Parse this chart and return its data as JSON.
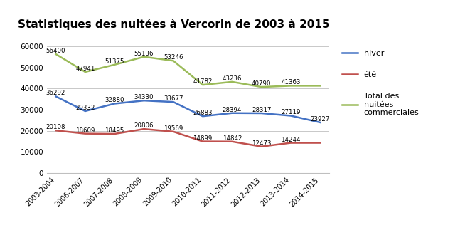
{
  "categories": [
    "2003-2004",
    "2006-2007",
    "2007-2008",
    "2008-2009",
    "2009-2010",
    "2010-2011",
    "2011-2012",
    "2012-2013",
    "2013-2014",
    "2014-2015"
  ],
  "hiver": [
    36292,
    29332,
    32880,
    34330,
    33677,
    26883,
    28394,
    28317,
    27119,
    23927
  ],
  "ete": [
    20108,
    18609,
    18495,
    20806,
    19569,
    14899,
    14842,
    12473,
    14244,
    14244
  ],
  "total": [
    56400,
    47941,
    51375,
    55136,
    53246,
    41782,
    43236,
    40790,
    41363,
    41363
  ],
  "hiver_labels": [
    36292,
    29332,
    32880,
    34330,
    33677,
    26883,
    28394,
    28317,
    27119,
    23927
  ],
  "ete_labels": [
    20108,
    18609,
    18495,
    20806,
    19569,
    14899,
    14842,
    12473,
    14244,
    null
  ],
  "total_labels": [
    56400,
    47941,
    51375,
    55136,
    53246,
    41782,
    43236,
    40790,
    41363,
    null
  ],
  "color_hiver": "#4472C4",
  "color_ete": "#C0504D",
  "color_total": "#9BBB59",
  "title": "Statistiques des nuitées à Vercorin de 2003 à 2015",
  "ylim": [
    0,
    65000
  ],
  "yticks": [
    0,
    10000,
    20000,
    30000,
    40000,
    50000,
    60000
  ],
  "legend_hiver": "hiver",
  "legend_ete": "été",
  "legend_total": "Total des\nnuitées\ncommerciales"
}
